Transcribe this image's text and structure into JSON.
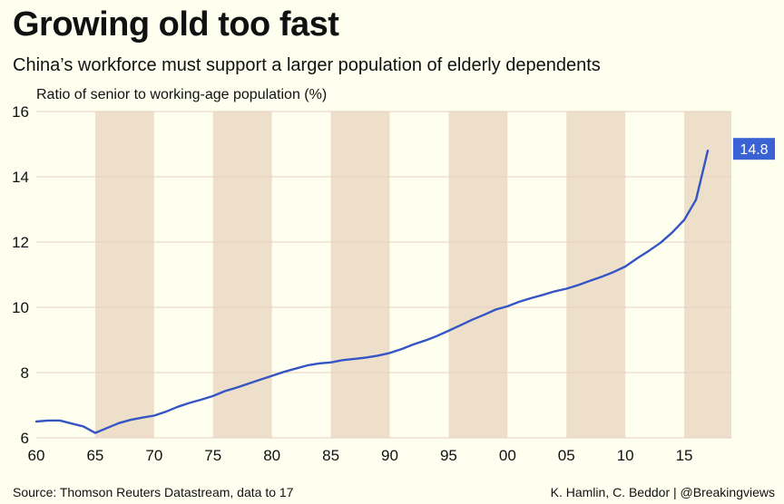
{
  "header": {
    "title": "Growing old too fast",
    "subtitle": "China’s workforce must support a larger population of elderly dependents"
  },
  "footer": {
    "source": "Source: Thomson Reuters Datastream, data to 17",
    "credit": "K. Hamlin, C. Beddor | @Breakingviews"
  },
  "colors": {
    "background": "#fffff0",
    "band": "#eedfcb",
    "line": "#3555c4",
    "label_bg": "#3a62d4",
    "gridline": "#e6cfc2"
  },
  "chart_data": {
    "type": "line",
    "title": "Growing old too fast",
    "ylabel": "Ratio of senior to working-age population (%)",
    "xlim": [
      1960,
      2019
    ],
    "ylim": [
      6,
      16
    ],
    "yticks": [
      6,
      8,
      10,
      12,
      14,
      16
    ],
    "xticks": [
      {
        "year": 1960,
        "label": "60"
      },
      {
        "year": 1965,
        "label": "65"
      },
      {
        "year": 1970,
        "label": "70"
      },
      {
        "year": 1975,
        "label": "75"
      },
      {
        "year": 1980,
        "label": "80"
      },
      {
        "year": 1985,
        "label": "85"
      },
      {
        "year": 1990,
        "label": "90"
      },
      {
        "year": 1995,
        "label": "95"
      },
      {
        "year": 2000,
        "label": "00"
      },
      {
        "year": 2005,
        "label": "05"
      },
      {
        "year": 2010,
        "label": "10"
      },
      {
        "year": 2015,
        "label": "15"
      }
    ],
    "bands": [
      [
        1965,
        1970
      ],
      [
        1975,
        1980
      ],
      [
        1985,
        1990
      ],
      [
        1995,
        2000
      ],
      [
        2005,
        2010
      ],
      [
        2015,
        2020
      ]
    ],
    "grid": true,
    "series": [
      {
        "x": [
          1960,
          1961,
          1962,
          1963,
          1964,
          1965,
          1966,
          1967,
          1968,
          1969,
          1970,
          1971,
          1972,
          1973,
          1974,
          1975,
          1976,
          1977,
          1978,
          1979,
          1980,
          1981,
          1982,
          1983,
          1984,
          1985,
          1986,
          1987,
          1988,
          1989,
          1990,
          1991,
          1992,
          1993,
          1994,
          1995,
          1996,
          1997,
          1998,
          1999,
          2000,
          2001,
          2002,
          2003,
          2004,
          2005,
          2006,
          2007,
          2008,
          2009,
          2010,
          2011,
          2012,
          2013,
          2014,
          2015,
          2016,
          2017
        ],
        "y": [
          6.5,
          6.53,
          6.53,
          6.44,
          6.35,
          6.15,
          6.3,
          6.45,
          6.55,
          6.62,
          6.68,
          6.8,
          6.95,
          7.07,
          7.17,
          7.28,
          7.43,
          7.54,
          7.66,
          7.78,
          7.9,
          8.02,
          8.12,
          8.22,
          8.28,
          8.31,
          8.38,
          8.42,
          8.46,
          8.52,
          8.6,
          8.72,
          8.86,
          8.98,
          9.12,
          9.28,
          9.45,
          9.62,
          9.77,
          9.93,
          10.03,
          10.17,
          10.28,
          10.38,
          10.49,
          10.57,
          10.68,
          10.81,
          10.94,
          11.08,
          11.25,
          11.5,
          11.73,
          11.98,
          12.3,
          12.68,
          13.3,
          14.8
        ]
      }
    ],
    "end_label": "14.8"
  }
}
